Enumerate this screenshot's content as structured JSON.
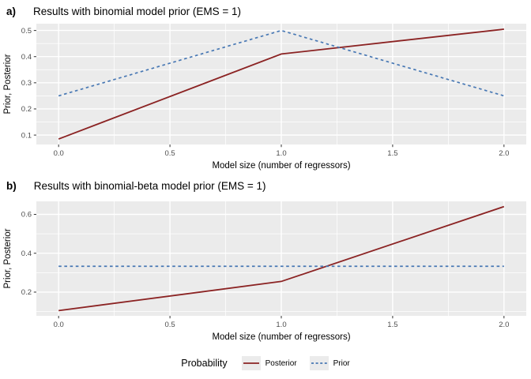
{
  "chart_data": [
    {
      "type": "line",
      "tag": "a)",
      "title": "Results with binomial model prior (EMS = 1)",
      "xlabel": "Model size (number of regressors)",
      "ylabel": "Prior, Posterior",
      "x": [
        0,
        1,
        2
      ],
      "series": [
        {
          "name": "Posterior",
          "values": [
            0.085,
            0.41,
            0.505
          ],
          "color": "#8B2323",
          "style": "solid"
        },
        {
          "name": "Prior",
          "values": [
            0.25,
            0.5,
            0.25
          ],
          "color": "#4878B4",
          "style": "dashed"
        }
      ],
      "xlim": [
        -0.1,
        2.1
      ],
      "ylim": [
        0.064,
        0.526
      ],
      "xticks": [
        0.0,
        0.5,
        1.0,
        1.5,
        2.0
      ],
      "xtick_labels": [
        "0.0",
        "0.5",
        "1.0",
        "1.5",
        "2.0"
      ],
      "yticks": [
        0.1,
        0.2,
        0.3,
        0.4,
        0.5
      ],
      "ytick_labels": [
        "0.1",
        "0.2",
        "0.3",
        "0.4",
        "0.5"
      ],
      "x_minor": [
        0.25,
        0.75,
        1.25,
        1.75
      ],
      "y_minor": [
        0.15,
        0.25,
        0.35,
        0.45
      ],
      "grid": true,
      "legend_position": "bottom"
    },
    {
      "type": "line",
      "tag": "b)",
      "title": "Results with binomial-beta model prior (EMS = 1)",
      "xlabel": "Model size (number of regressors)",
      "ylabel": "Prior, Posterior",
      "x": [
        0,
        1,
        2
      ],
      "series": [
        {
          "name": "Posterior",
          "values": [
            0.105,
            0.255,
            0.64
          ],
          "color": "#8B2323",
          "style": "solid"
        },
        {
          "name": "Prior",
          "values": [
            0.333,
            0.333,
            0.333
          ],
          "color": "#4878B4",
          "style": "dashed"
        }
      ],
      "xlim": [
        -0.1,
        2.1
      ],
      "ylim": [
        0.078,
        0.667
      ],
      "xticks": [
        0.0,
        0.5,
        1.0,
        1.5,
        2.0
      ],
      "xtick_labels": [
        "0.0",
        "0.5",
        "1.0",
        "1.5",
        "2.0"
      ],
      "yticks": [
        0.2,
        0.4,
        0.6
      ],
      "ytick_labels": [
        "0.2",
        "0.4",
        "0.6"
      ],
      "x_minor": [
        0.25,
        0.75,
        1.25,
        1.75
      ],
      "y_minor": [
        0.1,
        0.3,
        0.5
      ],
      "grid": true,
      "legend_position": "bottom"
    }
  ],
  "legend": {
    "title": "Probability",
    "entries": [
      {
        "label": "Posterior",
        "style": "solid",
        "color": "#8B2323"
      },
      {
        "label": "Prior",
        "style": "dashed",
        "color": "#4878B4"
      }
    ]
  },
  "colors": {
    "panel_bg": "#EBEBEB",
    "grid": "#FFFFFF",
    "axis_text": "#4D4D4D",
    "tick_mark": "#333333",
    "title_text": "#000000",
    "posterior": "#8B2323",
    "prior": "#4878B4",
    "legend_key_bg": "#EBEBEB"
  }
}
